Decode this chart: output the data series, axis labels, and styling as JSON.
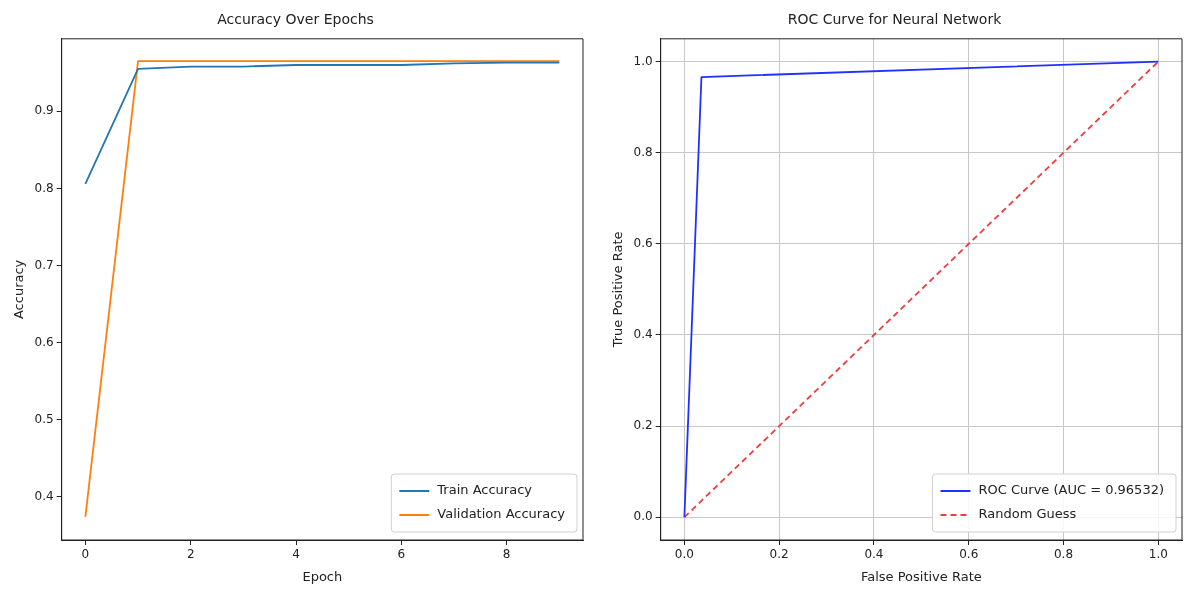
{
  "chart_data": [
    {
      "type": "line",
      "title": "Accuracy Over Epochs",
      "xlabel": "Epoch",
      "ylabel": "Accuracy",
      "x": [
        0,
        1,
        2,
        3,
        4,
        5,
        6,
        7,
        8,
        9
      ],
      "series": [
        {
          "name": "Train Accuracy",
          "color": "#1f77b4",
          "values": [
            0.806,
            0.955,
            0.958,
            0.958,
            0.96,
            0.96,
            0.96,
            0.962,
            0.963,
            0.963
          ]
        },
        {
          "name": "Validation Accuracy",
          "color": "#ff7f0e",
          "values": [
            0.374,
            0.965,
            0.965,
            0.965,
            0.965,
            0.965,
            0.965,
            0.965,
            0.965,
            0.965
          ]
        }
      ],
      "xlim": [
        -0.45,
        9.45
      ],
      "xticks": [
        0,
        2,
        4,
        6,
        8
      ],
      "ylim": [
        0.344,
        0.994
      ],
      "yticks": [
        0.4,
        0.5,
        0.6,
        0.7,
        0.8,
        0.9
      ],
      "grid": false,
      "legend": "bottom right",
      "marker": "none",
      "line_style": "solid"
    },
    {
      "type": "line",
      "title": "ROC Curve for Neural Network",
      "xlabel": "False Positive Rate",
      "ylabel": "True Positive Rate",
      "series": [
        {
          "name": "ROC Curve (AUC = 0.96532)",
          "color": "#2030ff",
          "x": [
            0,
            0.036,
            1
          ],
          "values": [
            0,
            0.966,
            1
          ]
        },
        {
          "name": "Random Guess",
          "color": "#f03c3c",
          "x": [
            0,
            1
          ],
          "values": [
            0,
            1
          ],
          "line_style": "dashed"
        }
      ],
      "xlim": [
        -0.05,
        1.05
      ],
      "xticks": [
        {
          "value": 0,
          "label": "0.0"
        },
        {
          "value": 0.2,
          "label": "0.2"
        },
        {
          "value": 0.4,
          "label": "0.4"
        },
        {
          "value": 0.6,
          "label": "0.6"
        },
        {
          "value": 0.8,
          "label": "0.8"
        },
        {
          "value": 1,
          "label": "1.0"
        }
      ],
      "ylim": [
        -0.05,
        1.05
      ],
      "yticks": [
        {
          "value": 0,
          "label": "0.0"
        },
        {
          "value": 0.2,
          "label": "0.2"
        },
        {
          "value": 0.4,
          "label": "0.4"
        },
        {
          "value": 0.6,
          "label": "0.6"
        },
        {
          "value": 0.8,
          "label": "0.8"
        },
        {
          "value": 1,
          "label": "1.0"
        }
      ],
      "grid": true,
      "legend": "bottom right",
      "marker": "none",
      "line_style": "solid"
    }
  ]
}
